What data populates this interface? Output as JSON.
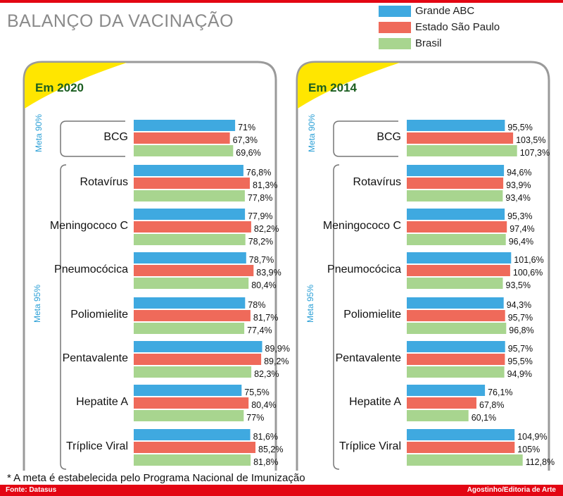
{
  "title": "BALANÇO DA VACINAÇÃO",
  "legend": [
    "Grande ABC",
    "Estado São Paulo",
    "Brasil"
  ],
  "colors": {
    "grande_abc": "#3fa9e0",
    "estado_sp": "#ef6a5a",
    "brasil": "#a8d58f",
    "accent": "#e30613",
    "highlight": "#ffe600"
  },
  "meta_bcg": "Meta 90%",
  "meta_rest": "Meta 95%",
  "footnote": "* A meta é estabelecida pelo Programa Nacional de Imunização",
  "source": "Fonte: Datasus",
  "credit": "Agostinho/Editoria de Arte",
  "chart_data": [
    {
      "type": "bar",
      "title": "Em 2020",
      "categories": [
        "BCG",
        "Rotavírus",
        "Meningococo C",
        "Pneumocócica",
        "Poliomielite",
        "Pentavalente",
        "Hepatite A",
        "Tríplice Viral"
      ],
      "series": [
        {
          "name": "Grande ABC",
          "values": [
            71,
            76.8,
            77.9,
            78.7,
            78,
            89.9,
            75.5,
            81.6
          ],
          "labels": [
            "71%",
            "76,8%",
            "77,9%",
            "78,7%",
            "78%",
            "89,9%",
            "75,5%",
            "81,6%"
          ]
        },
        {
          "name": "Estado São Paulo",
          "values": [
            67.3,
            81.3,
            82.2,
            83.9,
            81.7,
            89.2,
            80.4,
            85.2
          ],
          "labels": [
            "67,3%",
            "81,3%",
            "82,2%",
            "83,9%",
            "81,7%",
            "89,2%",
            "80,4%",
            "85,2%"
          ]
        },
        {
          "name": "Brasil",
          "values": [
            69.6,
            77.8,
            78.2,
            80.4,
            77.4,
            82.3,
            77,
            81.8
          ],
          "labels": [
            "69,6%",
            "77,8%",
            "78,2%",
            "80,4%",
            "77,4%",
            "82,3%",
            "77%",
            "81,8%"
          ]
        }
      ]
    },
    {
      "type": "bar",
      "title": "Em 2014",
      "categories": [
        "BCG",
        "Rotavírus",
        "Meningococo C",
        "Pneumocócica",
        "Poliomielite",
        "Pentavalente",
        "Hepatite A",
        "Tríplice Viral"
      ],
      "series": [
        {
          "name": "Grande ABC",
          "values": [
            95.5,
            94.6,
            95.3,
            101.6,
            94.3,
            95.7,
            76.1,
            104.9
          ],
          "labels": [
            "95,5%",
            "94,6%",
            "95,3%",
            "101,6%",
            "94,3%",
            "95,7%",
            "76,1%",
            "104,9%"
          ]
        },
        {
          "name": "Estado São Paulo",
          "values": [
            103.5,
            93.9,
            97.4,
            100.6,
            95.7,
            95.5,
            67.8,
            105
          ],
          "labels": [
            "103,5%",
            "93,9%",
            "97,4%",
            "100,6%",
            "95,7%",
            "95,5%",
            "67,8%",
            "105%"
          ]
        },
        {
          "name": "Brasil",
          "values": [
            107.3,
            93.4,
            96.4,
            93.5,
            96.8,
            94.9,
            60.1,
            112.8
          ],
          "labels": [
            "107,3%",
            "93,4%",
            "96,4%",
            "93,5%",
            "96,8%",
            "94,9%",
            "60,1%",
            "112,8%"
          ]
        }
      ]
    }
  ]
}
